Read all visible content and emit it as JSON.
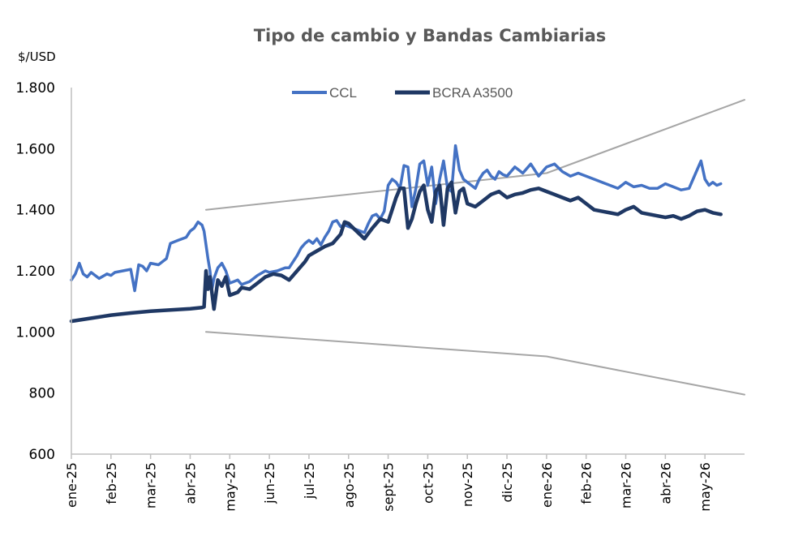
{
  "chart_data": {
    "type": "line",
    "title": "Tipo de cambio y Bandas Cambiarias",
    "ylabel": "$/USD",
    "ylim": [
      600,
      1800
    ],
    "yticks": [
      "1.800",
      "1.600",
      "1.400",
      "1.200",
      "1.000",
      "800",
      "600"
    ],
    "ytick_values": [
      1800,
      1600,
      1400,
      1200,
      1000,
      800,
      600
    ],
    "xlim": [
      0,
      17
    ],
    "xticks": [
      "ene-25",
      "feb-25",
      "mar-25",
      "abr-25",
      "may-25",
      "jun-25",
      "jul-25",
      "ago-25",
      "sept-25",
      "oct-25",
      "nov-25",
      "dic-25",
      "ene-26",
      "feb-26",
      "mar-26",
      "abr-26",
      "may-26"
    ],
    "x_unit": "months since ene-25",
    "legend": {
      "placement": "top-center"
    },
    "series": [
      {
        "name": "CCL",
        "color": "#4472c4",
        "width": 3.5,
        "x": [
          0.0,
          0.1,
          0.2,
          0.3,
          0.4,
          0.5,
          0.7,
          0.9,
          1.0,
          1.1,
          1.3,
          1.5,
          1.6,
          1.7,
          1.8,
          1.9,
          2.0,
          2.2,
          2.4,
          2.5,
          2.7,
          2.9,
          3.0,
          3.1,
          3.2,
          3.3,
          3.35,
          3.45,
          3.5,
          3.55,
          3.6,
          3.7,
          3.8,
          3.9,
          4.0,
          4.1,
          4.2,
          4.3,
          4.5,
          4.7,
          4.9,
          5.0,
          5.2,
          5.4,
          5.5,
          5.6,
          5.7,
          5.8,
          5.9,
          6.0,
          6.1,
          6.2,
          6.3,
          6.4,
          6.5,
          6.6,
          6.7,
          6.8,
          6.9,
          7.0,
          7.2,
          7.4,
          7.5,
          7.6,
          7.7,
          7.8,
          7.9,
          8.0,
          8.1,
          8.2,
          8.3,
          8.4,
          8.5,
          8.6,
          8.7,
          8.8,
          8.9,
          9.0,
          9.1,
          9.2,
          9.3,
          9.4,
          9.5,
          9.6,
          9.7,
          9.8,
          9.9,
          10.0,
          10.1,
          10.2,
          10.3,
          10.4,
          10.5,
          10.6,
          10.7,
          10.8,
          10.9,
          11.0,
          11.2,
          11.4,
          11.6,
          11.8,
          12.0,
          12.2,
          12.4,
          12.6,
          12.8,
          13.0,
          13.2,
          13.4,
          13.6,
          13.8,
          14.0,
          14.2,
          14.4,
          14.6,
          14.8,
          15.0,
          15.2,
          15.4,
          15.6,
          15.7,
          15.8,
          15.9,
          16.0,
          16.1,
          16.2,
          16.3,
          16.4
        ],
        "y": [
          1170,
          1190,
          1225,
          1190,
          1180,
          1195,
          1175,
          1190,
          1185,
          1195,
          1200,
          1205,
          1135,
          1220,
          1215,
          1200,
          1225,
          1220,
          1240,
          1290,
          1300,
          1310,
          1330,
          1340,
          1360,
          1350,
          1330,
          1240,
          1200,
          1140,
          1175,
          1210,
          1225,
          1200,
          1160,
          1165,
          1170,
          1155,
          1165,
          1185,
          1200,
          1195,
          1200,
          1210,
          1210,
          1230,
          1250,
          1275,
          1290,
          1300,
          1290,
          1305,
          1285,
          1310,
          1330,
          1360,
          1365,
          1345,
          1350,
          1345,
          1335,
          1325,
          1355,
          1380,
          1385,
          1370,
          1395,
          1480,
          1500,
          1490,
          1470,
          1545,
          1540,
          1410,
          1470,
          1550,
          1560,
          1480,
          1540,
          1420,
          1500,
          1560,
          1470,
          1460,
          1610,
          1530,
          1500,
          1490,
          1480,
          1470,
          1500,
          1520,
          1530,
          1510,
          1500,
          1525,
          1515,
          1510,
          1540,
          1520,
          1550,
          1510,
          1540,
          1550,
          1525,
          1510,
          1520,
          1510,
          1500,
          1490,
          1480,
          1470,
          1490,
          1475,
          1480,
          1470,
          1470,
          1485,
          1475,
          1465,
          1470,
          1500,
          1530,
          1560,
          1500,
          1480,
          1490,
          1480,
          1485
        ],
        "label": "CCL"
      },
      {
        "name": "BCRA A3500",
        "color": "#1f3864",
        "width": 4.5,
        "x": [
          0.0,
          0.5,
          1.0,
          1.5,
          2.0,
          2.5,
          3.0,
          3.3,
          3.35,
          3.4,
          3.45,
          3.5,
          3.6,
          3.7,
          3.8,
          3.9,
          4.0,
          4.2,
          4.3,
          4.5,
          4.7,
          4.9,
          5.1,
          5.3,
          5.5,
          5.7,
          5.9,
          6.0,
          6.2,
          6.4,
          6.6,
          6.8,
          6.9,
          7.0,
          7.2,
          7.4,
          7.6,
          7.8,
          8.0,
          8.1,
          8.2,
          8.3,
          8.4,
          8.5,
          8.6,
          8.7,
          8.8,
          8.9,
          9.0,
          9.1,
          9.2,
          9.3,
          9.4,
          9.5,
          9.6,
          9.7,
          9.8,
          9.9,
          10.0,
          10.2,
          10.4,
          10.6,
          10.8,
          11.0,
          11.2,
          11.4,
          11.6,
          11.8,
          12.0,
          12.2,
          12.4,
          12.6,
          12.8,
          13.0,
          13.2,
          13.4,
          13.6,
          13.8,
          14.0,
          14.2,
          14.4,
          14.6,
          14.8,
          15.0,
          15.2,
          15.4,
          15.6,
          15.8,
          16.0,
          16.2,
          16.4
        ],
        "y": [
          1035,
          1045,
          1055,
          1062,
          1068,
          1072,
          1076,
          1080,
          1082,
          1200,
          1140,
          1180,
          1075,
          1170,
          1150,
          1180,
          1120,
          1130,
          1145,
          1140,
          1160,
          1180,
          1190,
          1185,
          1170,
          1200,
          1230,
          1250,
          1265,
          1280,
          1290,
          1320,
          1360,
          1355,
          1330,
          1305,
          1340,
          1370,
          1360,
          1400,
          1440,
          1470,
          1470,
          1340,
          1370,
          1420,
          1460,
          1480,
          1400,
          1360,
          1460,
          1480,
          1350,
          1470,
          1490,
          1390,
          1460,
          1470,
          1420,
          1410,
          1430,
          1450,
          1460,
          1440,
          1450,
          1455,
          1465,
          1470,
          1460,
          1450,
          1440,
          1430,
          1440,
          1420,
          1400,
          1395,
          1390,
          1385,
          1400,
          1410,
          1390,
          1385,
          1380,
          1375,
          1380,
          1370,
          1380,
          1395,
          1400,
          1390,
          1385
        ],
        "label": "BCRA A3500"
      },
      {
        "name": "upper-band",
        "color": "#a6a6a6",
        "width": 2,
        "x": [
          3.4,
          12.0,
          17.0
        ],
        "y": [
          1400,
          1520,
          1760
        ]
      },
      {
        "name": "lower-band",
        "color": "#a6a6a6",
        "width": 2,
        "x": [
          3.4,
          12.0,
          17.0
        ],
        "y": [
          1000,
          920,
          795
        ]
      }
    ]
  }
}
